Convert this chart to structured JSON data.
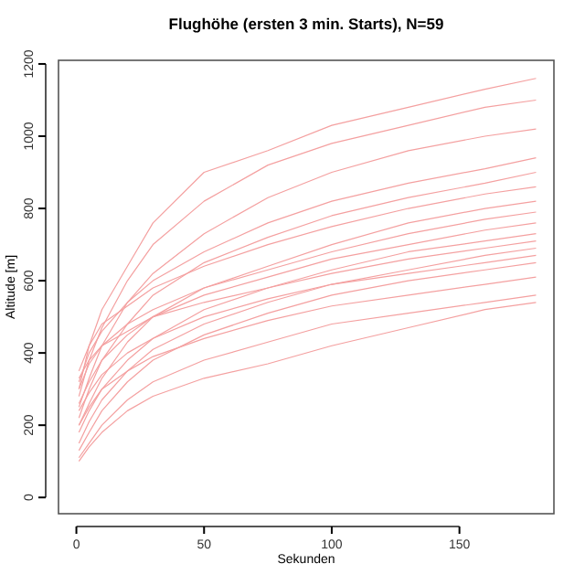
{
  "chart_data": {
    "type": "line",
    "title": "Flughöhe (ersten 3 min. Starts), N=59",
    "xlabel": "Sekunden",
    "ylabel": "Altitude [m]",
    "x": [
      1,
      5,
      10,
      20,
      30,
      50,
      75,
      100,
      130,
      160,
      180
    ],
    "xlim": [
      -7,
      187
    ],
    "xticks": [
      0,
      50,
      100,
      150
    ],
    "ylim": [
      -45,
      1210
    ],
    "yticks": [
      0,
      200,
      400,
      600,
      800,
      1000,
      1200
    ],
    "grid": false,
    "marker": "none",
    "line_style": "solid",
    "series": [
      {
        "color": "#f4a0a0",
        "values": [
          300,
          420,
          520,
          640,
          760,
          900,
          960,
          1030,
          1080,
          1130,
          1160
        ]
      },
      {
        "color": "#f4a0a0",
        "values": [
          280,
          380,
          470,
          600,
          700,
          820,
          920,
          980,
          1030,
          1080,
          1100
        ]
      },
      {
        "color": "#f4a0a0",
        "values": [
          250,
          330,
          420,
          540,
          620,
          730,
          830,
          900,
          960,
          1000,
          1020
        ]
      },
      {
        "color": "#f4a0a0",
        "values": [
          320,
          400,
          460,
          540,
          600,
          680,
          760,
          820,
          870,
          910,
          940
        ]
      },
      {
        "color": "#f4a0a0",
        "values": [
          220,
          300,
          380,
          480,
          560,
          650,
          720,
          780,
          830,
          870,
          900
        ]
      },
      {
        "color": "#f4a0a0",
        "values": [
          350,
          420,
          480,
          530,
          580,
          640,
          700,
          750,
          800,
          840,
          860
        ]
      },
      {
        "color": "#f4a0a0",
        "values": [
          200,
          260,
          330,
          430,
          500,
          580,
          640,
          700,
          760,
          800,
          820
        ]
      },
      {
        "color": "#f4a0a0",
        "values": [
          300,
          370,
          420,
          480,
          520,
          580,
          630,
          680,
          730,
          770,
          790
        ]
      },
      {
        "color": "#f4a0a0",
        "values": [
          260,
          320,
          380,
          450,
          500,
          560,
          610,
          660,
          700,
          740,
          760
        ]
      },
      {
        "color": "#f4a0a0",
        "values": [
          180,
          240,
          300,
          380,
          440,
          520,
          580,
          630,
          680,
          710,
          730
        ]
      },
      {
        "color": "#f4a0a0",
        "values": [
          330,
          380,
          420,
          460,
          500,
          540,
          580,
          620,
          660,
          690,
          710
        ]
      },
      {
        "color": "#f4a0a0",
        "values": [
          150,
          210,
          270,
          350,
          410,
          480,
          540,
          590,
          630,
          670,
          690
        ]
      },
      {
        "color": "#f4a0a0",
        "values": [
          240,
          290,
          340,
          400,
          440,
          500,
          550,
          590,
          620,
          650,
          670
        ]
      },
      {
        "color": "#f4a0a0",
        "values": [
          130,
          180,
          240,
          320,
          380,
          450,
          510,
          560,
          600,
          630,
          650
        ]
      },
      {
        "color": "#f4a0a0",
        "values": [
          200,
          250,
          300,
          350,
          390,
          440,
          490,
          530,
          560,
          590,
          610
        ]
      },
      {
        "color": "#f4a0a0",
        "values": [
          110,
          150,
          200,
          270,
          320,
          380,
          430,
          480,
          510,
          540,
          560
        ]
      },
      {
        "color": "#f4a0a0",
        "values": [
          100,
          140,
          180,
          240,
          280,
          330,
          370,
          420,
          470,
          520,
          540
        ]
      }
    ]
  }
}
